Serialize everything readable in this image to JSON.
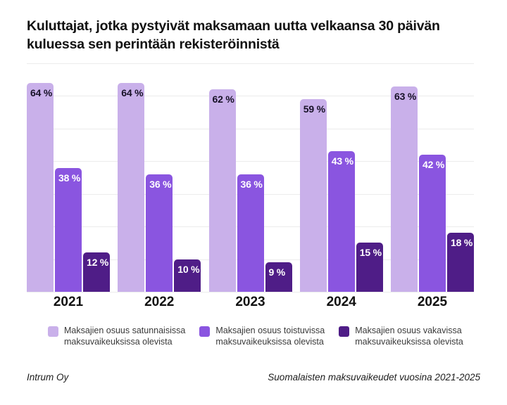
{
  "title": "Kuluttajat, jotka pystyivät maksamaan uutta velkaansa 30 päivän kuluessa sen perintään rekisteröinnistä",
  "chart_data": {
    "type": "bar",
    "title": "Kuluttajat, jotka pystyivät maksamaan uutta velkaansa 30 päivän kuluessa sen perintään rekisteröinnistä",
    "categories": [
      "2021",
      "2022",
      "2023",
      "2024",
      "2025"
    ],
    "series": [
      {
        "name": "Maksajien osuus satunnaisissa\nmaksuvaikeuksissa olevista",
        "color": "#c9b0ea",
        "label_color": "#171127",
        "values": [
          64,
          64,
          62,
          59,
          63
        ]
      },
      {
        "name": "Maksajien osuus toistuvissa\nmaksuvaikeuksissa olevista",
        "color": "#8a55e0",
        "label_color": "#ffffff",
        "values": [
          38,
          36,
          36,
          43,
          42
        ]
      },
      {
        "name": "Maksajien osuus vakavissa\nmaksuvaikeuksissa olevista",
        "color": "#4f1d87",
        "label_color": "#ffffff",
        "values": [
          12,
          10,
          9,
          15,
          18
        ]
      }
    ],
    "label_suffix": " %",
    "ylim": [
      0,
      70
    ],
    "grid": true,
    "grid_step": 10,
    "gridline_color": "#ececec",
    "legend_position": "bottom"
  },
  "footer": {
    "left": "Intrum Oy",
    "right": "Suomalaisten maksuvaikeudet vuosina 2021-2025"
  }
}
